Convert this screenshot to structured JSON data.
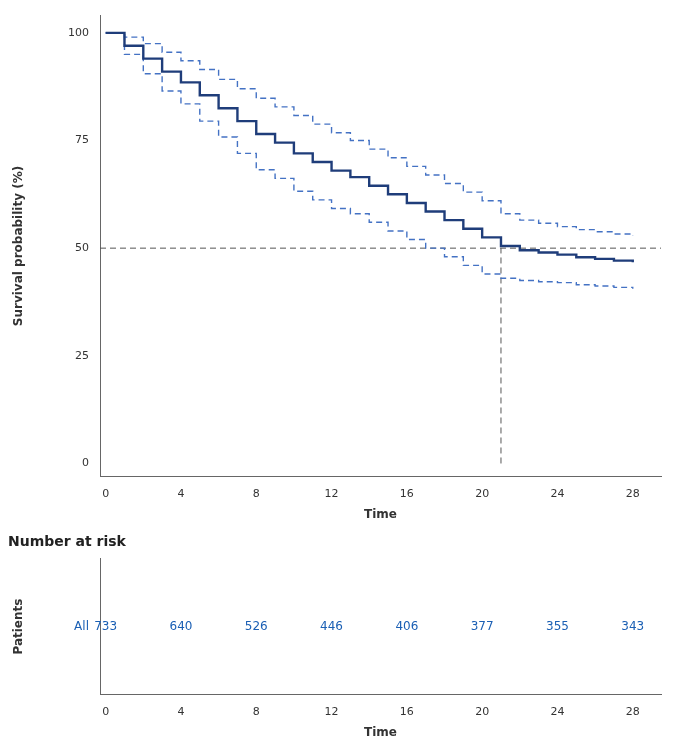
{
  "chart_data": [
    {
      "type": "step",
      "xlabel": "Time",
      "ylabel": "Survival probability (%)",
      "x": [
        0,
        1,
        2,
        3,
        4,
        5,
        6,
        7,
        8,
        9,
        10,
        11,
        12,
        13,
        14,
        15,
        16,
        17,
        18,
        19,
        20,
        21,
        22,
        23,
        24,
        25,
        26,
        27,
        28
      ],
      "series": [
        {
          "color": "#4472c4",
          "line_style": "dashed",
          "values": [
            100,
            99,
            97.5,
            95.5,
            93.5,
            91.5,
            89.2,
            87,
            84.8,
            82.8,
            80.8,
            78.8,
            76.8,
            75,
            73,
            71,
            69,
            67,
            65,
            63,
            61,
            58,
            56.5,
            55.8,
            55,
            54.3,
            53.8,
            53.3,
            52.8
          ]
        },
        {
          "color": "#4472c4",
          "line_style": "dashed",
          "values": [
            100,
            95,
            90.5,
            86.5,
            83.5,
            79.5,
            75.8,
            72,
            68.2,
            66.2,
            63.2,
            61.2,
            59.2,
            58,
            56,
            54,
            52,
            50,
            48,
            46,
            44,
            43,
            42.5,
            42.2,
            42,
            41.5,
            41.2,
            40.9,
            40.6
          ]
        },
        {
          "color": "#1f3d7a",
          "line_style": "solid",
          "values": [
            100,
            97,
            94,
            91,
            88.5,
            85.5,
            82.5,
            79.5,
            76.5,
            74.5,
            72,
            70,
            68,
            66.5,
            64.5,
            62.5,
            60.5,
            58.5,
            56.5,
            54.5,
            52.5,
            50.5,
            49.5,
            49,
            48.5,
            47.9,
            47.5,
            47.1,
            46.7
          ]
        }
      ],
      "median": {
        "x": 21.0,
        "y": 50,
        "y_start": 0,
        "color": "#555555",
        "line_style": "dashed"
      },
      "xlim": [
        -0.3,
        29.5
      ],
      "ylim": [
        -3,
        104
      ],
      "xticks": [
        0,
        4,
        8,
        12,
        16,
        20,
        24,
        28
      ],
      "yticks": [
        0,
        25,
        50,
        75,
        100
      ],
      "grid": false
    },
    {
      "type": "table",
      "title": "Number at risk",
      "xlabel": "Time",
      "ylabel": "Patients",
      "x": [
        0,
        4,
        8,
        12,
        16,
        20,
        24,
        28
      ],
      "series": [
        {
          "name": "All",
          "color": "#1a5fb4",
          "values": [
            733,
            640,
            526,
            446,
            406,
            377,
            355,
            343
          ]
        }
      ],
      "xlim": [
        -0.3,
        29.5
      ],
      "xticks": [
        0,
        4,
        8,
        12,
        16,
        20,
        24,
        28
      ],
      "grid": false
    }
  ]
}
